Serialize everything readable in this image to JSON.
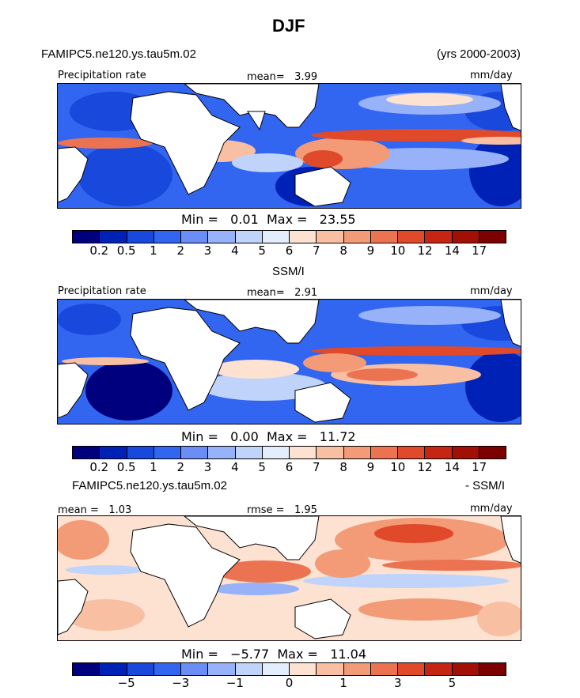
{
  "title": "DJF",
  "panels": [
    {
      "model_label": "FAMIPC5.ne120.ys.tau5m.02",
      "years_label": "(yrs 2000-2003)",
      "variable": "Precipitation rate",
      "mean_text": "mean=",
      "mean_value": "3.99",
      "units": "mm/day",
      "min_text": "Min =",
      "min_value": "0.01",
      "max_text": "Max =",
      "max_value": "23.55"
    },
    {
      "source_label": "SSM/I",
      "variable": "Precipitation rate",
      "mean_text": "mean=",
      "mean_value": "2.91",
      "units": "mm/day",
      "min_text": "Min =",
      "min_value": "0.00",
      "max_text": "Max =",
      "max_value": "11.72"
    },
    {
      "diff_left": "FAMIPC5.ne120.ys.tau5m.02",
      "diff_right": "- SSM/I",
      "mean_text": "mean =",
      "mean_value": "1.03",
      "rmse_text": "rmse =",
      "rmse_value": "1.95",
      "units": "mm/day",
      "min_text": "Min =",
      "min_value": "−5.77",
      "max_text": "Max =",
      "max_value": "11.04"
    }
  ],
  "colorbar": {
    "colors": [
      "#00007f",
      "#0021b5",
      "#1848dc",
      "#3265f0",
      "#6a8ef5",
      "#97b2f8",
      "#c0d3fa",
      "#e3eefc",
      "#fde2d2",
      "#f9bfa2",
      "#f39a76",
      "#ec7352",
      "#e04a2b",
      "#c52512",
      "#a21005",
      "#7d0000"
    ],
    "precip_ticks": [
      "0.2",
      "0.5",
      "1",
      "2",
      "3",
      "4",
      "5",
      "6",
      "7",
      "8",
      "9",
      "10",
      "12",
      "14",
      "17"
    ],
    "diff_ticks": [
      "−5",
      "−3",
      "−1",
      "0",
      "1",
      "3",
      "5"
    ]
  },
  "chart_data": [
    {
      "type": "heatmap",
      "title": "DJF FAMIPC5.ne120.ys.tau5m.02 Precipitation rate (yrs 2000-2003)",
      "units": "mm/day",
      "mean": 3.99,
      "min": 0.01,
      "max": 23.55,
      "levels": [
        0.2,
        0.5,
        1,
        2,
        3,
        4,
        5,
        6,
        7,
        8,
        9,
        10,
        12,
        14,
        17
      ]
    },
    {
      "type": "heatmap",
      "title": "SSM/I Precipitation rate",
      "units": "mm/day",
      "mean": 2.91,
      "min": 0.0,
      "max": 11.72,
      "levels": [
        0.2,
        0.5,
        1,
        2,
        3,
        4,
        5,
        6,
        7,
        8,
        9,
        10,
        12,
        14,
        17
      ]
    },
    {
      "type": "heatmap",
      "title": "FAMIPC5.ne120.ys.tau5m.02 - SSM/I",
      "units": "mm/day",
      "mean": 1.03,
      "rmse": 1.95,
      "min": -5.77,
      "max": 11.04,
      "levels": [
        -5,
        -3,
        -1,
        0,
        1,
        3,
        5
      ]
    }
  ]
}
